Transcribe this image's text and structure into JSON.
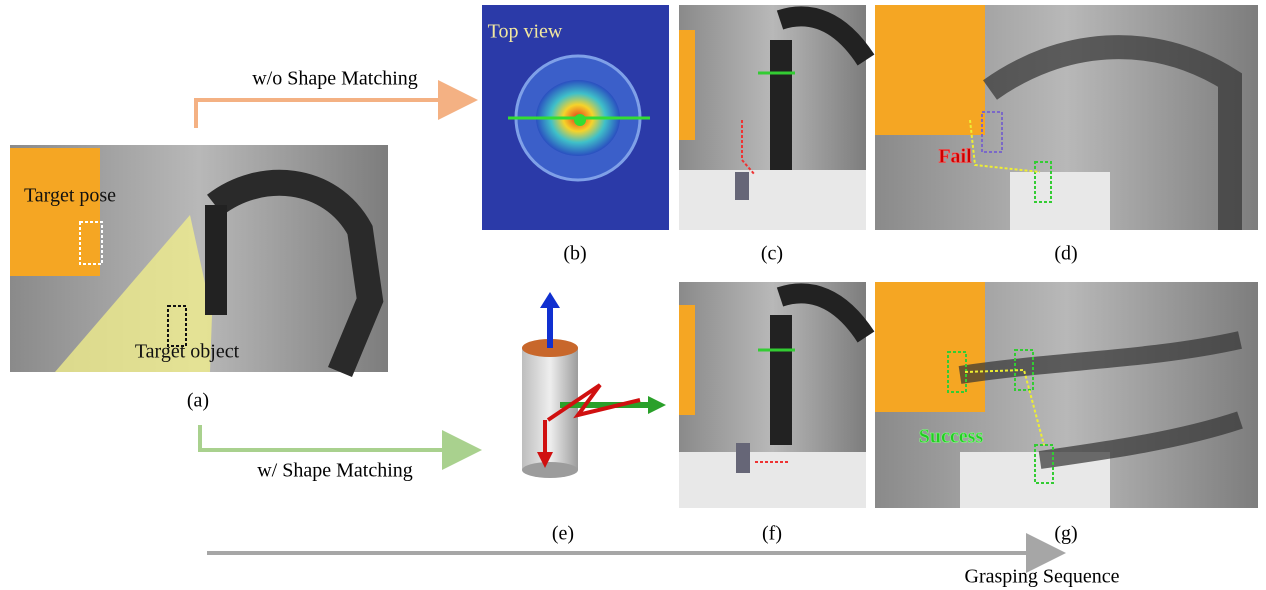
{
  "panels": {
    "a": {
      "label": "(a)",
      "annotations": [
        "Target pose",
        "Target object"
      ]
    },
    "b": {
      "label": "(b)",
      "annotation": "Top view"
    },
    "c": {
      "label": "(c)"
    },
    "d": {
      "label": "(d)",
      "annotation": "Fail"
    },
    "e": {
      "label": "(e)"
    },
    "f": {
      "label": "(f)"
    },
    "g": {
      "label": "(g)",
      "annotation": "Success"
    }
  },
  "arrows": {
    "top": "w/o Shape Matching",
    "bottom": "w/ Shape Matching",
    "sequence": "Grasping Sequence"
  }
}
